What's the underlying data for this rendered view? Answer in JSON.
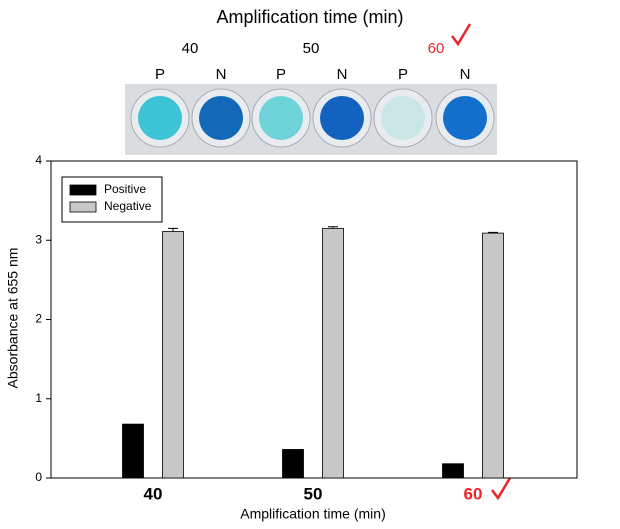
{
  "photo": {
    "title": "Amplification time (min)",
    "times": [
      "40",
      "50",
      "60"
    ],
    "wells": [
      "P",
      "N",
      "P",
      "N",
      "P",
      "N"
    ]
  },
  "chart_data": {
    "type": "bar",
    "categories": [
      "40",
      "50",
      "60"
    ],
    "category_colors": [
      "#000000",
      "#000000",
      "#e8262a"
    ],
    "series": [
      {
        "name": "Positive",
        "color": "#000000",
        "values": [
          0.68,
          0.36,
          0.18
        ]
      },
      {
        "name": "Negative",
        "color": "#c8c8c8",
        "values": [
          3.11,
          3.15,
          3.09
        ],
        "error": [
          0.04,
          0.02,
          0.01
        ]
      }
    ],
    "xlabel": "Amplification time (min)",
    "ylabel": "Absorbance at 655 nm",
    "ylim": [
      0,
      4
    ],
    "yticks": [
      0,
      1,
      2,
      3,
      4
    ]
  }
}
